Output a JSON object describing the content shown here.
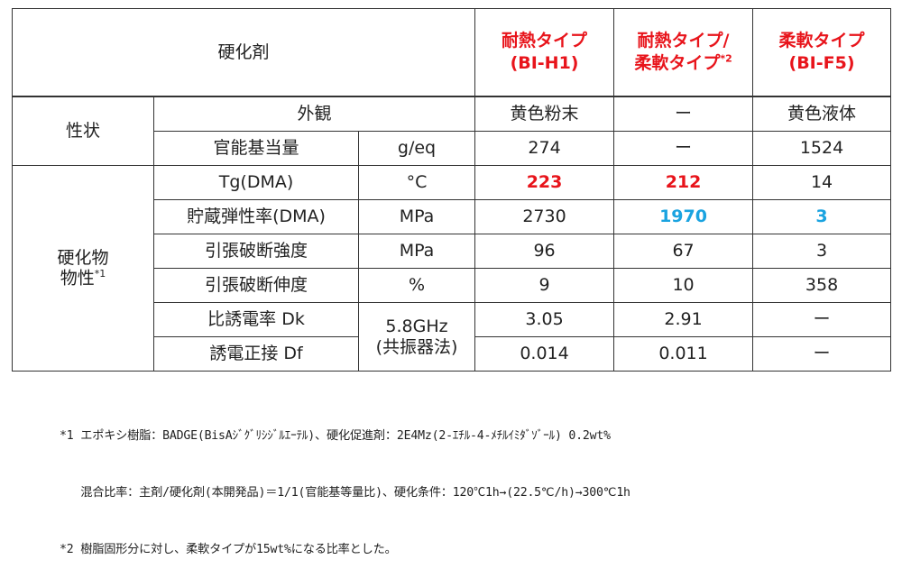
{
  "header": {
    "hardener": "硬化剤",
    "col1_line1": "耐熱タイプ",
    "col1_line2": "(BI-H1)",
    "col2_line1": "耐熱タイプ/",
    "col2_line2": "柔軟タイプ",
    "col2_sup": "*2",
    "col3_line1": "柔軟タイプ",
    "col3_line2": "(BI-F5)"
  },
  "groups": {
    "properties": "性状",
    "cured_line1": "硬化物",
    "cured_line2": "物性",
    "cured_sup": "*1"
  },
  "rows": [
    {
      "label": "外観",
      "unit": "",
      "v1": "黄色粉末",
      "v2": "ー",
      "v3": "黄色液体"
    },
    {
      "label": "官能基当量",
      "unit": "g/eq",
      "v1": "274",
      "v2": "ー",
      "v3": "1524"
    },
    {
      "label": "Tg(DMA)",
      "unit": "°C",
      "v1": "223",
      "v2": "212",
      "v3": "14"
    },
    {
      "label": "貯蔵弾性率(DMA)",
      "unit": "MPa",
      "v1": "2730",
      "v2": "1970",
      "v3": "3"
    },
    {
      "label": "引張破断強度",
      "unit": "MPa",
      "v1": "96",
      "v2": "67",
      "v3": "3"
    },
    {
      "label": "引張破断伸度",
      "unit": "%",
      "v1": "9",
      "v2": "10",
      "v3": "358"
    },
    {
      "label": "比誘電率 Dk",
      "unit": "",
      "v1": "3.05",
      "v2": "2.91",
      "v3": "ー"
    },
    {
      "label": "誘電正接 Df",
      "unit": "",
      "v1": "0.014",
      "v2": "0.011",
      "v3": "ー"
    }
  ],
  "dielectric_unit_line1": "5.8GHz",
  "dielectric_unit_line2": "(共振器法)",
  "colors": {
    "highlight_red": "#e8141b",
    "highlight_blue": "#1aa3e0"
  },
  "footnotes": {
    "note1_line1": "*1 エポキシ樹脂：BADGE(BisAｼﾞｸﾞﾘｼｼﾞﾙｴｰﾃﾙ)、硬化促進剤：2E4Mz(2-ｴﾁﾙ-4-ﾒﾁﾙｲﾐﾀﾞｿﾞｰﾙ) 0.2wt%",
    "note1_line2": "   混合比率：主剤/硬化剤(本開発品)＝1/1(官能基等量比)、硬化条件：120℃1h→(22.5℃/h)→300℃1h",
    "note2": "*2 樹脂固形分に対し、柔軟タイプが15wt%になる比率とした。"
  }
}
